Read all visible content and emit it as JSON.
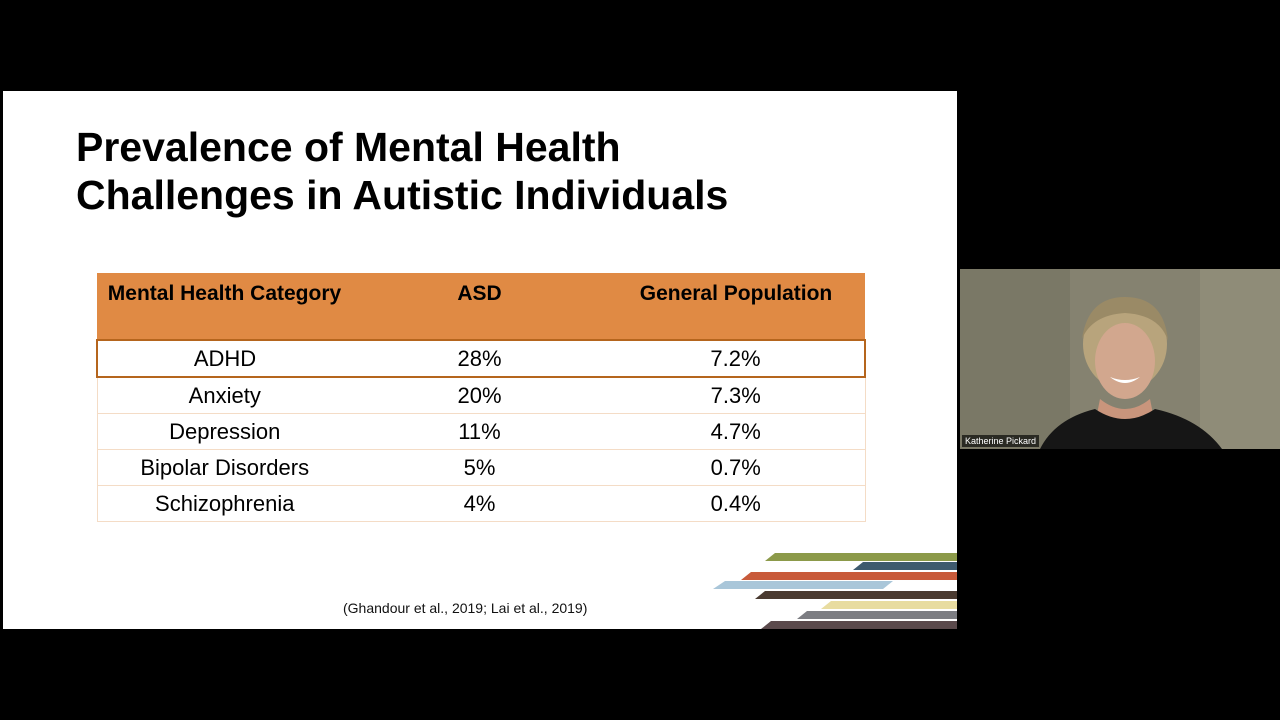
{
  "slide": {
    "title_lines": [
      "Prevalence of Mental Health",
      "Challenges in Autistic Individuals"
    ],
    "table": {
      "headers": [
        "Mental Health Category",
        "ASD",
        "General Population"
      ],
      "rows": [
        [
          "ADHD",
          "28%",
          "7.2%"
        ],
        [
          "Anxiety",
          "20%",
          "7.3%"
        ],
        [
          "Depression",
          "11%",
          "4.7%"
        ],
        [
          "Bipolar Disorders",
          "5%",
          "0.7%"
        ],
        [
          "Schizophrenia",
          "4%",
          "0.4%"
        ]
      ],
      "highlighted_row": "ADHD"
    },
    "citation": "(Ghandour et al., 2019; Lai et al., 2019)",
    "colors": {
      "header_fill": "#E08A44",
      "highlight_border": "#B5651D",
      "stripe_colors": [
        "#8C9A4A",
        "#3E5A6E",
        "#C85A3A",
        "#A9C6D9",
        "#4A3A30",
        "#E8DCA0",
        "#7C7D82",
        "#5B4A4C"
      ]
    }
  },
  "video_tile": {
    "participant_name": "Katherine Pickard"
  }
}
